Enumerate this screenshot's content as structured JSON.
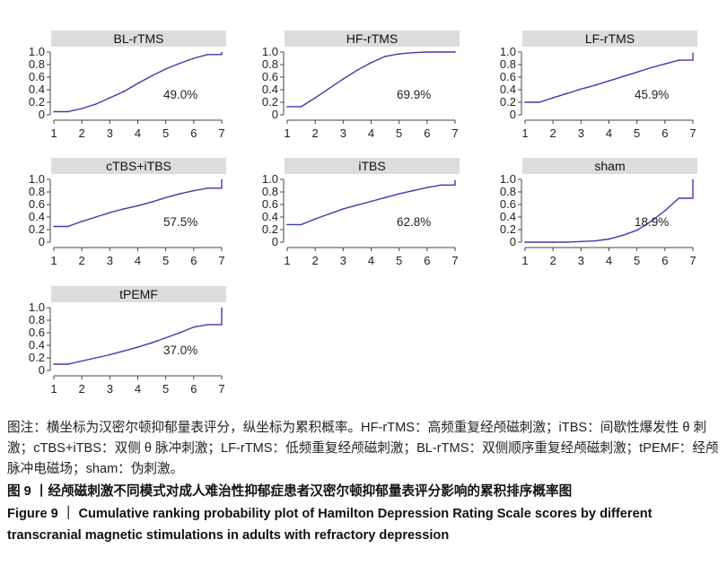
{
  "chart_data": [
    {
      "type": "line",
      "title": "BL-rTMS",
      "annotation": "49.0%",
      "x": [
        1,
        1.5,
        2,
        2.5,
        3,
        3.5,
        4,
        4.5,
        5,
        5.5,
        6,
        6.5,
        7
      ],
      "values": [
        0.05,
        0.05,
        0.1,
        0.17,
        0.27,
        0.37,
        0.5,
        0.62,
        0.73,
        0.82,
        0.9,
        0.96,
        0.99
      ],
      "xticks": [
        1,
        2,
        3,
        4,
        5,
        6,
        7
      ],
      "yticks": [
        "0",
        "0.2",
        "0.4",
        "0.6",
        "0.8",
        "1.0"
      ],
      "xlim": [
        1,
        7
      ],
      "ylim": [
        0,
        1
      ],
      "color": "#3b3bb0"
    },
    {
      "type": "line",
      "title": "HF-rTMS",
      "annotation": "69.9%",
      "x": [
        1,
        1.5,
        2,
        2.5,
        3,
        3.5,
        4,
        4.5,
        5,
        5.5,
        6,
        6.5,
        7
      ],
      "values": [
        0.13,
        0.13,
        0.27,
        0.42,
        0.57,
        0.71,
        0.83,
        0.93,
        0.97,
        0.99,
        1.0,
        1.0,
        1.0
      ],
      "xticks": [
        1,
        2,
        3,
        4,
        5,
        6,
        7
      ],
      "yticks": [
        "0",
        "0.2",
        "0.4",
        "0.6",
        "0.8",
        "1.0"
      ],
      "xlim": [
        1,
        7
      ],
      "ylim": [
        0,
        1
      ],
      "color": "#3b3bb0"
    },
    {
      "type": "line",
      "title": "LF-rTMS",
      "annotation": "45.9%",
      "x": [
        1,
        1.5,
        2,
        2.5,
        3,
        3.5,
        4,
        4.5,
        5,
        5.5,
        6,
        6.5,
        7
      ],
      "values": [
        0.2,
        0.2,
        0.27,
        0.34,
        0.41,
        0.47,
        0.54,
        0.61,
        0.68,
        0.75,
        0.81,
        0.87,
        0.98
      ],
      "xticks": [
        1,
        2,
        3,
        4,
        5,
        6,
        7
      ],
      "yticks": [
        "0",
        "0.2",
        "0.4",
        "0.6",
        "0.8",
        "1.0"
      ],
      "xlim": [
        1,
        7
      ],
      "ylim": [
        0,
        1
      ],
      "color": "#3b3bb0"
    },
    {
      "type": "line",
      "title": "cTBS+iTBS",
      "annotation": "57.5%",
      "x": [
        1,
        1.5,
        2,
        2.5,
        3,
        3.5,
        4,
        4.5,
        5,
        5.5,
        6,
        6.5,
        7
      ],
      "values": [
        0.25,
        0.25,
        0.33,
        0.4,
        0.47,
        0.53,
        0.58,
        0.64,
        0.71,
        0.77,
        0.82,
        0.86,
        0.99
      ],
      "xticks": [
        1,
        2,
        3,
        4,
        5,
        6,
        7
      ],
      "yticks": [
        "0",
        "0.2",
        "0.4",
        "0.6",
        "0.8",
        "1.0"
      ],
      "xlim": [
        1,
        7
      ],
      "ylim": [
        0,
        1
      ],
      "color": "#3b3bb0"
    },
    {
      "type": "line",
      "title": "iTBS",
      "annotation": "62.8%",
      "x": [
        1,
        1.5,
        2,
        2.5,
        3,
        3.5,
        4,
        4.5,
        5,
        5.5,
        6,
        6.5,
        7
      ],
      "values": [
        0.28,
        0.28,
        0.37,
        0.45,
        0.53,
        0.59,
        0.65,
        0.71,
        0.77,
        0.82,
        0.87,
        0.91,
        0.98
      ],
      "xticks": [
        1,
        2,
        3,
        4,
        5,
        6,
        7
      ],
      "yticks": [
        "0",
        "0.2",
        "0.4",
        "0.6",
        "0.8",
        "1.0"
      ],
      "xlim": [
        1,
        7
      ],
      "ylim": [
        0,
        1
      ],
      "color": "#3b3bb0"
    },
    {
      "type": "line",
      "title": "sham",
      "annotation": "18.9%",
      "x": [
        1,
        1.5,
        2,
        2.5,
        3,
        3.5,
        4,
        4.5,
        5,
        5.5,
        6,
        6.5,
        7
      ],
      "values": [
        0.0,
        0.0,
        0.0,
        0.0,
        0.01,
        0.02,
        0.05,
        0.11,
        0.19,
        0.33,
        0.5,
        0.7,
        0.99
      ],
      "xticks": [
        1,
        2,
        3,
        4,
        5,
        6,
        7
      ],
      "yticks": [
        "0",
        "0.2",
        "0.4",
        "0.6",
        "0.8",
        "1.0"
      ],
      "xlim": [
        1,
        7
      ],
      "ylim": [
        0,
        1
      ],
      "color": "#3b3bb0"
    },
    {
      "type": "line",
      "title": "tPEMF",
      "annotation": "37.0%",
      "x": [
        1,
        1.5,
        2,
        2.5,
        3,
        3.5,
        4,
        4.5,
        5,
        5.5,
        6,
        6.5,
        7
      ],
      "values": [
        0.1,
        0.1,
        0.15,
        0.2,
        0.25,
        0.31,
        0.37,
        0.44,
        0.52,
        0.6,
        0.69,
        0.73,
        0.99
      ],
      "xticks": [
        1,
        2,
        3,
        4,
        5,
        6,
        7
      ],
      "yticks": [
        "0",
        "0.2",
        "0.4",
        "0.6",
        "0.8",
        "1.0"
      ],
      "xlim": [
        1,
        7
      ],
      "ylim": [
        0,
        1
      ],
      "color": "#3b3bb0"
    }
  ],
  "caption": {
    "note": "图注：横坐标为汉密尔顿抑郁量表评分，纵坐标为累积概率。HF-rTMS：高频重复经颅磁刺激；iTBS：间歇性爆发性 θ 刺激；cTBS+iTBS：双侧 θ 脉冲刺激；LF-rTMS：低频重复经颅磁刺激；BL-rTMS：双侧顺序重复经颅磁刺激；tPEMF：经颅脉冲电磁场；sham：伪刺激。",
    "title_cn": "图 9 丨经颅磁刺激不同模式对成人难治性抑郁症患者汉密尔顿抑郁量表评分影响的累积排序概率图",
    "title_en": "Figure 9 ｜ Cumulative ranking probability plot of Hamilton Depression Rating Scale scores by different transcranial magnetic stimulations in adults with refractory depression"
  }
}
